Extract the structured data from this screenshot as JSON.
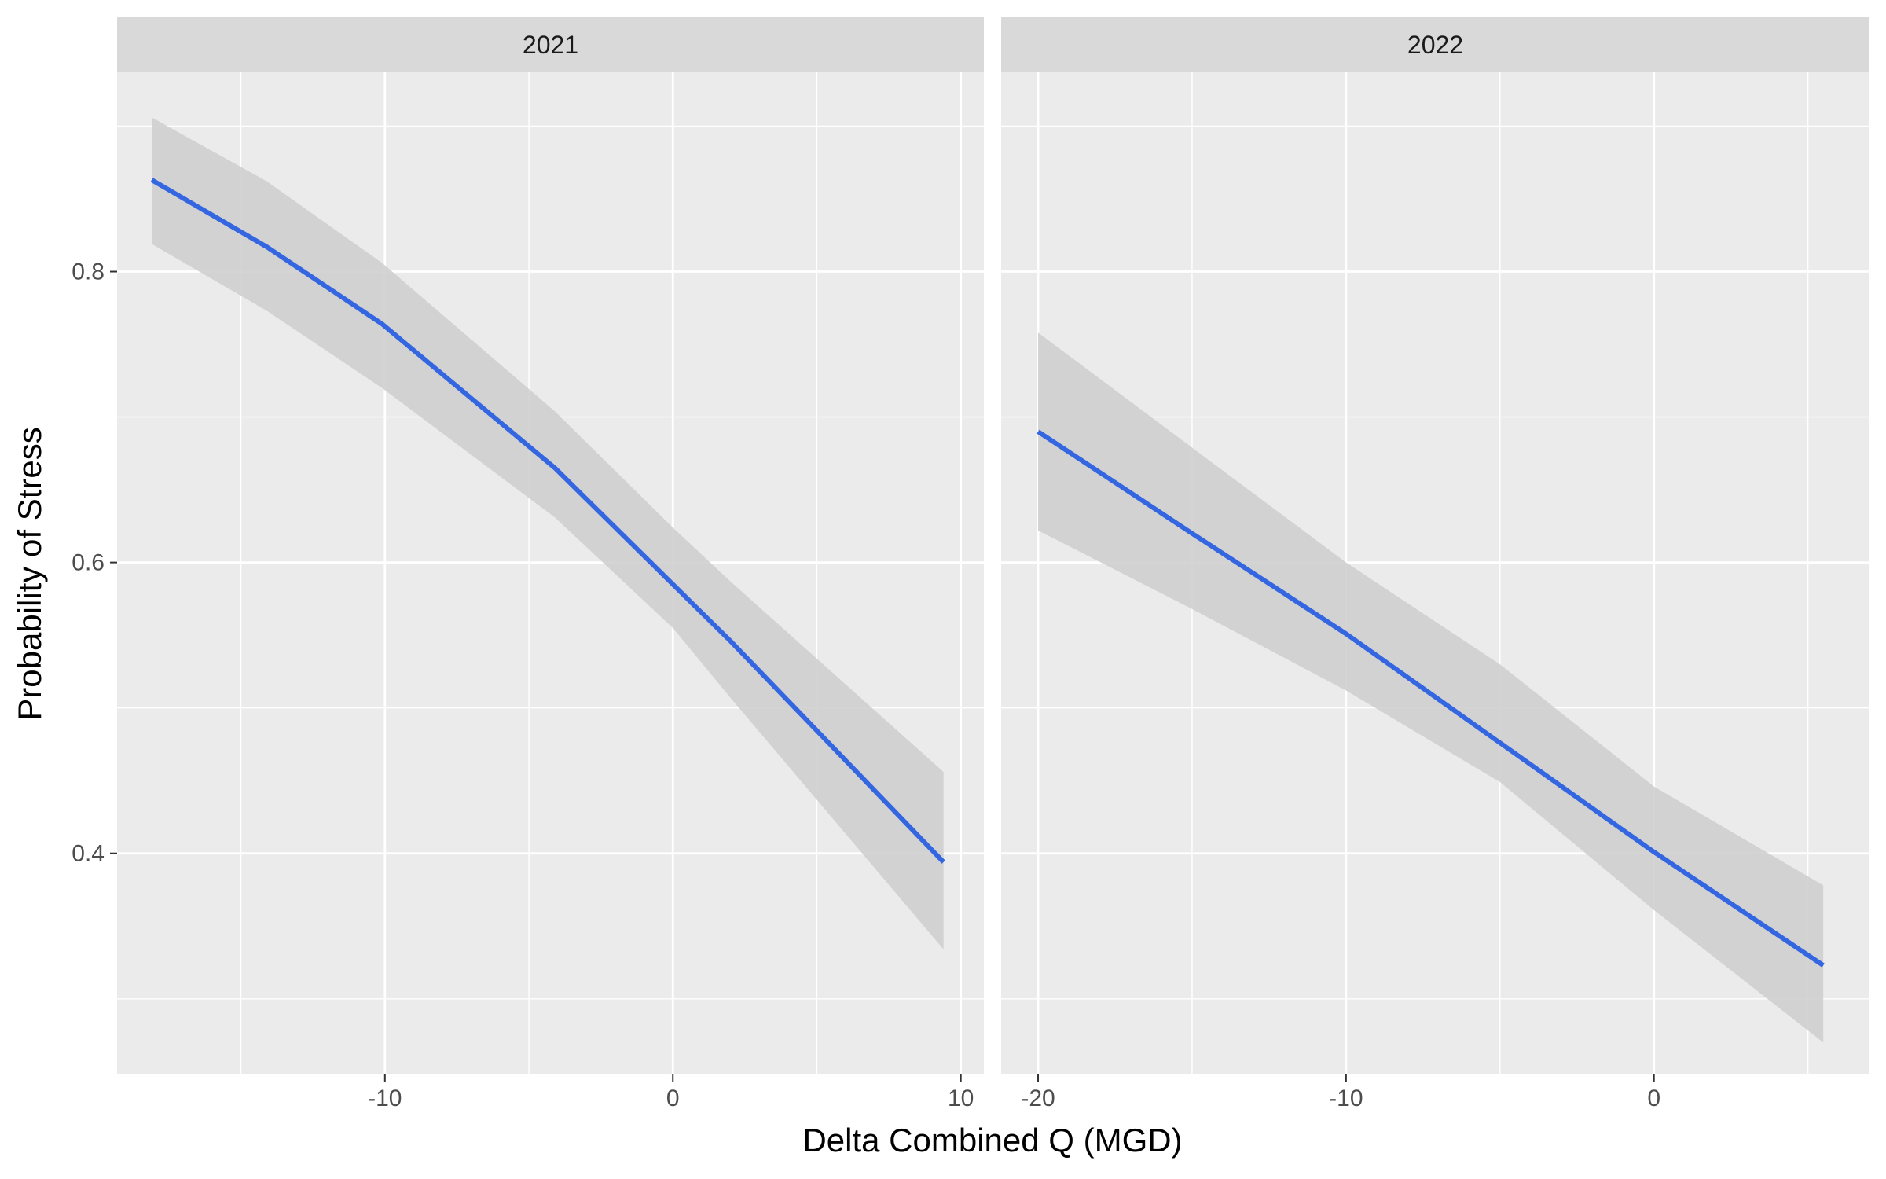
{
  "chart_data": {
    "type": "line",
    "facet_by": "year",
    "xlabel": "Delta Combined Q (MGD)",
    "ylabel": "Probability of Stress",
    "ylim": [
      0.248,
      0.937
    ],
    "y_ticks": [
      0.4,
      0.6,
      0.8
    ],
    "y_tick_labels": [
      "0.4",
      "0.6",
      "0.8"
    ],
    "y_minor_ticks": [
      0.3,
      0.5,
      0.7,
      0.9
    ],
    "grid": true,
    "legend": "none",
    "colors": {
      "line": "#3366e0",
      "ribbon": "#cfcfcf",
      "panel_bg": "#ebebeb",
      "strip_bg": "#d9d9d9",
      "grid": "#ffffff"
    },
    "panels": [
      {
        "strip": "2021",
        "xlim": [
          -19.3,
          10.8
        ],
        "x_ticks": [
          -10,
          0,
          10
        ],
        "x_tick_labels": [
          "-10",
          "0",
          "10"
        ],
        "x_minor_ticks": [
          -15,
          -5,
          5
        ],
        "series": [
          {
            "x": [
              -18.1,
              -14.1,
              -10.1,
              -4.1,
              0.0,
              2.0,
              9.4
            ],
            "y": [
              0.863,
              0.817,
              0.764,
              0.665,
              0.585,
              0.546,
              0.394
            ],
            "lower": [
              0.819,
              0.773,
              0.72,
              0.631,
              0.555,
              0.507,
              0.334
            ],
            "upper": [
              0.906,
              0.862,
              0.806,
              0.704,
              0.624,
              0.587,
              0.456
            ]
          }
        ]
      },
      {
        "strip": "2022",
        "xlim": [
          -21.2,
          7.0
        ],
        "x_ticks": [
          -20,
          -10,
          0
        ],
        "x_tick_labels": [
          "-20",
          "-10",
          "0"
        ],
        "x_minor_ticks": [
          -15,
          -5,
          5
        ],
        "series": [
          {
            "x": [
              -20.0,
              -15.0,
              -10.0,
              -5.0,
              0.0,
              5.5
            ],
            "y": [
              0.69,
              0.62,
              0.551,
              0.476,
              0.401,
              0.323
            ],
            "lower": [
              0.622,
              0.568,
              0.512,
              0.449,
              0.361,
              0.27
            ],
            "upper": [
              0.758,
              0.679,
              0.6,
              0.53,
              0.446,
              0.378
            ]
          }
        ]
      }
    ]
  }
}
